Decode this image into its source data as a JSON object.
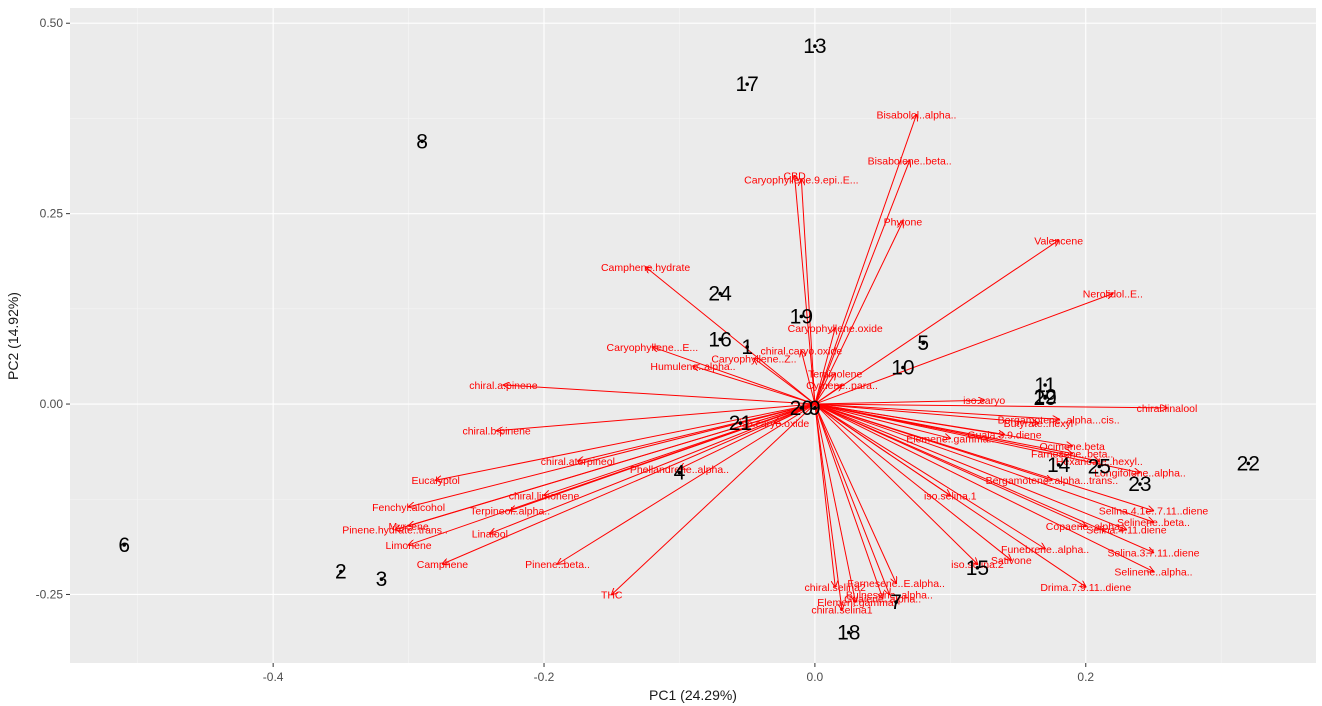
{
  "chart_data": {
    "type": "scatter",
    "subtype": "pca-biplot",
    "xlabel": "PC1 (24.29%)",
    "ylabel": "PC2 (14.92%)",
    "xlim": [
      -0.55,
      0.37
    ],
    "ylim": [
      -0.34,
      0.52
    ],
    "x_ticks": [
      -0.4,
      -0.2,
      0.0,
      0.2
    ],
    "x_tick_labels": [
      "-0.4",
      "-0.2",
      "0.0",
      "0.2"
    ],
    "y_ticks": [
      -0.25,
      0.0,
      0.25,
      0.5
    ],
    "y_tick_labels": [
      "-0.25",
      "0.00",
      "0.25",
      "0.50"
    ],
    "grid": true,
    "background": "#ebebeb",
    "loading_color": "#ff0000",
    "observation_color": "#000000",
    "observations": [
      {
        "label": "1",
        "x": -0.05,
        "y": 0.075
      },
      {
        "label": "2",
        "x": -0.35,
        "y": -0.22
      },
      {
        "label": "3",
        "x": -0.32,
        "y": -0.23
      },
      {
        "label": "4",
        "x": -0.1,
        "y": -0.09
      },
      {
        "label": "5",
        "x": 0.08,
        "y": 0.08
      },
      {
        "label": "6",
        "x": -0.51,
        "y": -0.185
      },
      {
        "label": "7",
        "x": 0.06,
        "y": -0.26
      },
      {
        "label": "8",
        "x": -0.29,
        "y": 0.345
      },
      {
        "label": "9",
        "x": 0.0,
        "y": -0.005
      },
      {
        "label": "10",
        "x": 0.065,
        "y": 0.048
      },
      {
        "label": "11",
        "x": 0.17,
        "y": 0.025
      },
      {
        "label": "12",
        "x": 0.17,
        "y": 0.01
      },
      {
        "label": "13",
        "x": 0.0,
        "y": 0.47
      },
      {
        "label": "14",
        "x": 0.18,
        "y": -0.08
      },
      {
        "label": "15",
        "x": 0.12,
        "y": -0.215
      },
      {
        "label": "16",
        "x": -0.07,
        "y": 0.085
      },
      {
        "label": "17",
        "x": -0.05,
        "y": 0.42
      },
      {
        "label": "18",
        "x": 0.025,
        "y": -0.3
      },
      {
        "label": "19",
        "x": -0.01,
        "y": 0.115
      },
      {
        "label": "20",
        "x": -0.01,
        "y": -0.005
      },
      {
        "label": "21",
        "x": -0.055,
        "y": -0.025
      },
      {
        "label": "22",
        "x": 0.32,
        "y": -0.078
      },
      {
        "label": "23",
        "x": 0.24,
        "y": -0.105
      },
      {
        "label": "24",
        "x": -0.07,
        "y": 0.145
      },
      {
        "label": "25",
        "x": 0.21,
        "y": -0.082
      },
      {
        "label": "29",
        "x": 0.17,
        "y": 0.008
      }
    ],
    "loadings": [
      {
        "name": "Bisabolol..alpha..",
        "x": 0.075,
        "y": 0.38
      },
      {
        "name": "Bisabolene..beta..",
        "x": 0.07,
        "y": 0.32
      },
      {
        "name": "CBD",
        "x": -0.015,
        "y": 0.3
      },
      {
        "name": "Caryophyllene.9.epi..E...",
        "x": -0.01,
        "y": 0.295
      },
      {
        "name": "Phytone",
        "x": 0.065,
        "y": 0.24
      },
      {
        "name": "Valencene",
        "x": 0.18,
        "y": 0.215
      },
      {
        "name": "Nerolidol..E..",
        "x": 0.22,
        "y": 0.145
      },
      {
        "name": "Camphene.hydrate",
        "x": -0.125,
        "y": 0.18
      },
      {
        "name": "Caryophyllene.oxide",
        "x": 0.015,
        "y": 0.1
      },
      {
        "name": "Caryophyllene...E...",
        "x": -0.12,
        "y": 0.075
      },
      {
        "name": "Caryophyllene..Z..",
        "x": -0.045,
        "y": 0.06
      },
      {
        "name": "chiral.caryo.oxide",
        "x": -0.01,
        "y": 0.07
      },
      {
        "name": "Humulene..alpha..",
        "x": -0.09,
        "y": 0.05
      },
      {
        "name": "Terpinolene",
        "x": 0.015,
        "y": 0.04
      },
      {
        "name": "Cymene..para..",
        "x": 0.02,
        "y": 0.025
      },
      {
        "name": "chiral.a.pinene",
        "x": -0.23,
        "y": 0.025
      },
      {
        "name": "chiral.b.pinene",
        "x": -0.235,
        "y": -0.035
      },
      {
        "name": "iso.caryo",
        "x": 0.125,
        "y": 0.005
      },
      {
        "name": "chiral.linalool",
        "x": 0.26,
        "y": -0.005
      },
      {
        "name": "Bergamotene..alpha...cis..",
        "x": 0.18,
        "y": -0.02
      },
      {
        "name": "Butyrate..hexyl",
        "x": 0.165,
        "y": -0.025
      },
      {
        "name": "Elemene..gamma..",
        "x": 0.1,
        "y": -0.045
      },
      {
        "name": "Guaia.3.9.diene",
        "x": 0.14,
        "y": -0.04
      },
      {
        "name": "Farnesene..beta..",
        "x": 0.19,
        "y": -0.065
      },
      {
        "name": "Ocimene.beta",
        "x": 0.19,
        "y": -0.055
      },
      {
        "name": "Hexanoate..hexyl..",
        "x": 0.21,
        "y": -0.075
      },
      {
        "name": "Longifolene..alpha..",
        "x": 0.24,
        "y": -0.09
      },
      {
        "name": "Bergamotene..alpha...trans..",
        "x": 0.175,
        "y": -0.1
      },
      {
        "name": "iso.caryo.oxide",
        "x": -0.03,
        "y": -0.025
      },
      {
        "name": "iso.selina.1",
        "x": 0.1,
        "y": -0.12
      },
      {
        "name": "Selina.4.1e..7.11..diene",
        "x": 0.25,
        "y": -0.14
      },
      {
        "name": "Selinene..beta..",
        "x": 0.25,
        "y": -0.155
      },
      {
        "name": "Copaene..alpha..",
        "x": 0.2,
        "y": -0.16
      },
      {
        "name": "Selina.4.11.diene",
        "x": 0.23,
        "y": -0.165
      },
      {
        "name": "Funebrene..alpha..",
        "x": 0.17,
        "y": -0.19
      },
      {
        "name": "iso.selina.2",
        "x": 0.12,
        "y": -0.21
      },
      {
        "name": "Sativone",
        "x": 0.145,
        "y": -0.205
      },
      {
        "name": "Selina.3.7.11..diene",
        "x": 0.25,
        "y": -0.195
      },
      {
        "name": "Selinene..alpha..",
        "x": 0.25,
        "y": -0.22
      },
      {
        "name": "Drima.7.9.11..diene",
        "x": 0.2,
        "y": -0.24
      },
      {
        "name": "Guaiene..alpha..",
        "x": 0.05,
        "y": -0.255
      },
      {
        "name": "chiral.selina2",
        "x": 0.015,
        "y": -0.24
      },
      {
        "name": "Farnesene..E.alpha..",
        "x": 0.06,
        "y": -0.235
      },
      {
        "name": "Bulnesene..alpha..",
        "x": 0.055,
        "y": -0.25
      },
      {
        "name": "chiral.selina1",
        "x": 0.02,
        "y": -0.27
      },
      {
        "name": "Element.gamma",
        "x": 0.03,
        "y": -0.26
      },
      {
        "name": "chiral.aterpineol",
        "x": -0.175,
        "y": -0.075
      },
      {
        "name": "Phellandrene..alpha..",
        "x": -0.1,
        "y": -0.085
      },
      {
        "name": "Eucalyptol",
        "x": -0.28,
        "y": -0.1
      },
      {
        "name": "chiral.limonene",
        "x": -0.2,
        "y": -0.12
      },
      {
        "name": "Fenchyl.alcohol",
        "x": -0.3,
        "y": -0.135
      },
      {
        "name": "Terpineol..alpha..",
        "x": -0.225,
        "y": -0.14
      },
      {
        "name": "Myrcene",
        "x": -0.3,
        "y": -0.16
      },
      {
        "name": "Pinene.hydrate..trans..",
        "x": -0.31,
        "y": -0.165
      },
      {
        "name": "Linalool",
        "x": -0.24,
        "y": -0.17
      },
      {
        "name": "Limonene",
        "x": -0.3,
        "y": -0.185
      },
      {
        "name": "Camphene",
        "x": -0.275,
        "y": -0.21
      },
      {
        "name": "Pinene..beta..",
        "x": -0.19,
        "y": -0.21
      },
      {
        "name": "THC",
        "x": -0.15,
        "y": -0.25
      }
    ]
  }
}
